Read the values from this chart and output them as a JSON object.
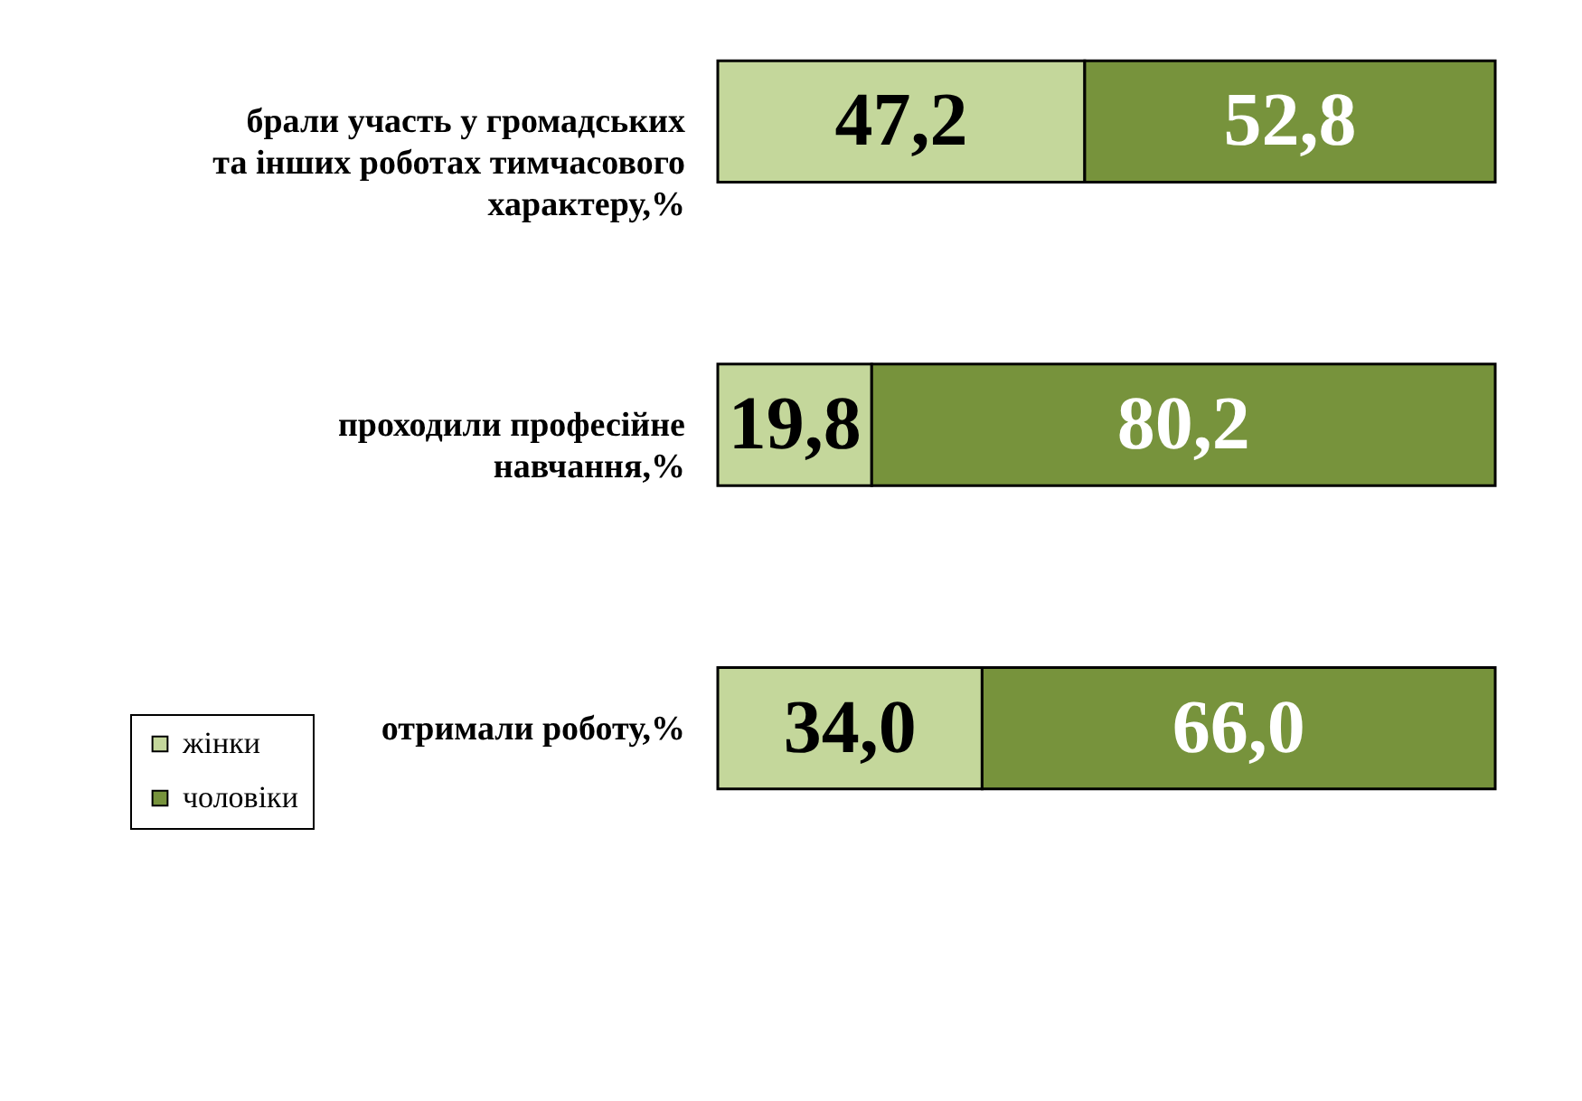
{
  "chart_data": {
    "type": "bar",
    "orientation": "horizontal",
    "stacked": true,
    "legend": "bottom left",
    "categories": [
      "брали участь у громадських та інших роботах тимчасового характеру,%",
      "проходили професійне навчання,%",
      "отримали роботу,%"
    ],
    "series": [
      {
        "name": "жінки",
        "color": "#c4d79b",
        "values": [
          47.2,
          19.8,
          34.0
        ],
        "value_labels": [
          "47,2",
          "19,8",
          "34,0"
        ]
      },
      {
        "name": "чоловіки",
        "color": "#77933c",
        "values": [
          52.8,
          80.2,
          66.0
        ],
        "value_labels": [
          "52,8",
          "80,2",
          "66,0"
        ]
      }
    ]
  }
}
